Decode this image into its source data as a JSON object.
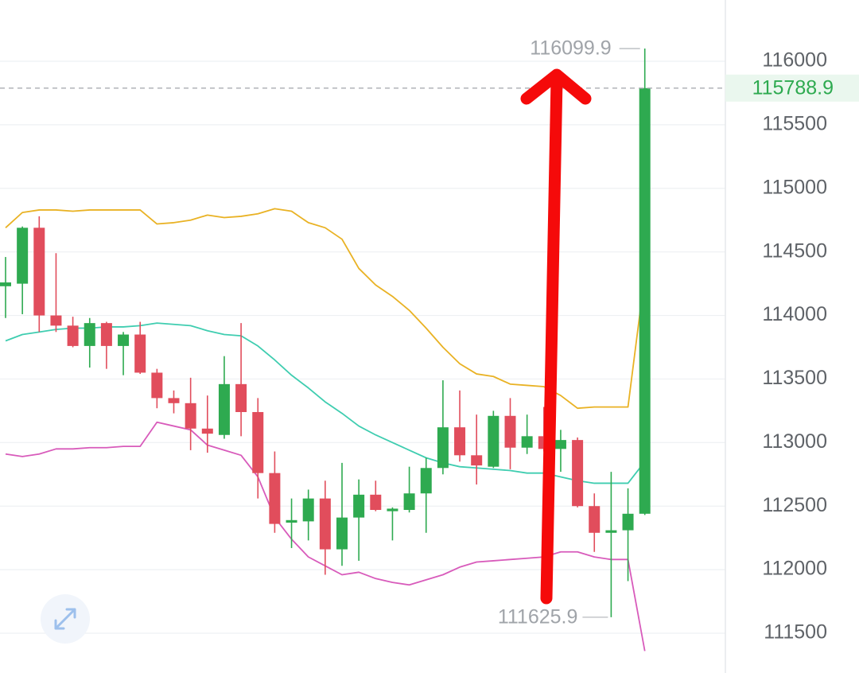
{
  "chart_data": {
    "type": "candlestick",
    "open": [
      114230,
      114250,
      114690,
      114000,
      113920,
      113760,
      113940,
      113760,
      113850,
      113550,
      113350,
      113310,
      113110,
      113060,
      113460,
      113240,
      112760,
      112370,
      112380,
      112560,
      112160,
      112410,
      112590,
      112460,
      112470,
      112600,
      112800,
      113120,
      112900,
      112810,
      113210,
      112960,
      113050,
      112950,
      113020,
      112500,
      112290,
      112310,
      112440
    ],
    "high": [
      114460,
      114700,
      114780,
      114490,
      113990,
      113980,
      113950,
      113870,
      113950,
      113580,
      113410,
      113510,
      113370,
      113680,
      113940,
      113350,
      112930,
      112560,
      112630,
      112700,
      112840,
      112710,
      112700,
      112490,
      112810,
      112880,
      113490,
      113410,
      113220,
      113250,
      113350,
      113220,
      113280,
      113100,
      113040,
      112600,
      112770,
      112640,
      116099.9
    ],
    "low": [
      113980,
      114010,
      113870,
      113870,
      113750,
      113590,
      113580,
      113530,
      113540,
      113270,
      113230,
      112940,
      112920,
      113030,
      113050,
      112560,
      112290,
      112170,
      112230,
      111960,
      112030,
      112070,
      112460,
      112230,
      112450,
      112290,
      112750,
      112850,
      112670,
      112800,
      112790,
      112910,
      112930,
      112770,
      112490,
      112140,
      111625.9,
      111910,
      112430
    ],
    "close": [
      114260,
      114690,
      114000,
      113920,
      113760,
      113940,
      113760,
      113850,
      113550,
      113350,
      113310,
      113110,
      113070,
      113460,
      113240,
      112760,
      112360,
      112390,
      112560,
      112160,
      112410,
      112590,
      112470,
      112480,
      112600,
      112800,
      113120,
      112900,
      112820,
      113210,
      112960,
      113050,
      112950,
      113020,
      112500,
      112290,
      112310,
      112440,
      115788.9
    ],
    "up_color": "#2eaa50",
    "down_color": "#e14d5c",
    "lines": [
      {
        "color": "#e9b224",
        "values": [
          114690,
          114810,
          114830,
          114830,
          114820,
          114830,
          114830,
          114830,
          114830,
          114720,
          114730,
          114750,
          114790,
          114770,
          114780,
          114800,
          114840,
          114820,
          114730,
          114690,
          114600,
          114370,
          114240,
          114150,
          114040,
          113900,
          113750,
          113620,
          113540,
          113520,
          113460,
          113450,
          113440,
          113370,
          113270,
          113280,
          113280,
          113280,
          114320
        ]
      },
      {
        "color": "#3fcdb0",
        "values": [
          113800,
          113850,
          113870,
          113890,
          113900,
          113900,
          113910,
          113910,
          113920,
          113940,
          113930,
          113920,
          113880,
          113850,
          113840,
          113760,
          113650,
          113530,
          113430,
          113320,
          113230,
          113130,
          113060,
          113000,
          112940,
          112880,
          112840,
          112810,
          112800,
          112790,
          112780,
          112760,
          112760,
          112730,
          112700,
          112680,
          112680,
          112680,
          112850
        ]
      },
      {
        "color": "#d85bbb",
        "values": [
          112910,
          112890,
          112910,
          112950,
          112950,
          112960,
          112960,
          112970,
          112970,
          113160,
          113130,
          113100,
          112980,
          112940,
          112900,
          112730,
          112410,
          112240,
          112100,
          112030,
          111960,
          111980,
          111930,
          111900,
          111880,
          111920,
          111960,
          112020,
          112060,
          112070,
          112080,
          112090,
          112100,
          112140,
          112140,
          112100,
          112080,
          112080,
          111360
        ]
      }
    ],
    "ylim": [
      111187,
      116482
    ],
    "yticks": [
      111500,
      112000,
      112500,
      113000,
      113500,
      114000,
      114500,
      115000,
      115500,
      116000
    ],
    "grid": true
  }
}
